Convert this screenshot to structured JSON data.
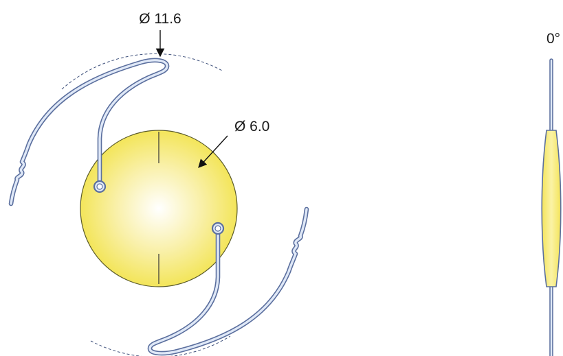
{
  "labels": {
    "overall_diameter": "Ø 11.6",
    "optic_diameter": "Ø 6.0",
    "side_view_angle": "0°"
  },
  "colors": {
    "optic_center": "#ffffff",
    "optic_edge": "#f3e55a",
    "optic_stroke": "#5a5a2a",
    "haptic_outline": "#5b6f9e",
    "haptic_fill": "#dfe8f7"
  }
}
